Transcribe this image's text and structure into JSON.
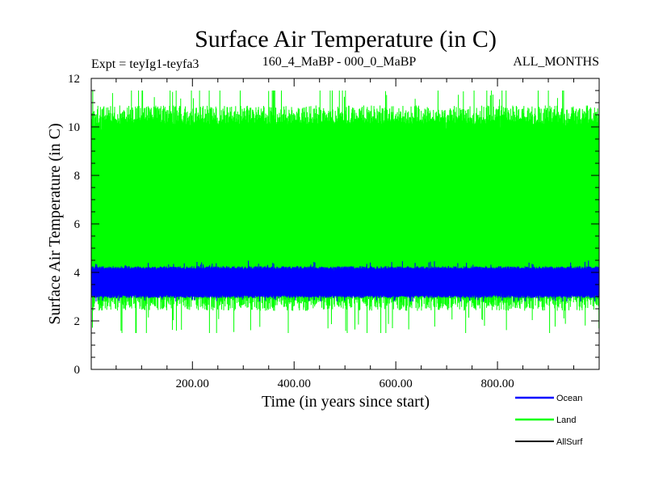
{
  "chart_data": {
    "type": "line",
    "title": "Surface Air Temperature (in C)",
    "subtitle_left": "Expt = teyIg1-teyfa3",
    "subtitle_center": "160_4_MaBP - 000_0_MaBP",
    "subtitle_right": "ALL_MONTHS",
    "xlabel": "Time (in years since start)",
    "ylabel": "Surface Air Temperature (in C)",
    "xlim": [
      1,
      1000
    ],
    "ylim": [
      0,
      12
    ],
    "xticks": [
      200,
      400,
      600,
      800
    ],
    "xtick_labels": [
      "200.00",
      "400.00",
      "600.00",
      "800.00"
    ],
    "yticks": [
      0,
      2,
      4,
      6,
      8,
      10,
      12
    ],
    "ytick_labels": [
      "0",
      "2",
      "4",
      "6",
      "8",
      "10",
      "12"
    ],
    "legend_position": "bottom-right",
    "series": [
      {
        "name": "Land",
        "color": "#00ff00",
        "pattern": "monthly seasonal cycle",
        "approx_min": 1.5,
        "approx_max": 11.5,
        "typical_low": 2.8,
        "typical_high": 10.5
      },
      {
        "name": "Ocean",
        "color": "#0000ff",
        "pattern": "monthly seasonal cycle",
        "approx_min": 2.8,
        "approx_max": 4.5,
        "typical_low": 3.0,
        "typical_high": 4.2
      },
      {
        "name": "AllSurf",
        "color": "#000000",
        "pattern": "not visible (hidden behind other series)"
      }
    ],
    "legend": [
      {
        "name": "Ocean",
        "color": "#0000ff"
      },
      {
        "name": "Land",
        "color": "#00ff00"
      },
      {
        "name": "AllSurf",
        "color": "#000000"
      }
    ]
  }
}
